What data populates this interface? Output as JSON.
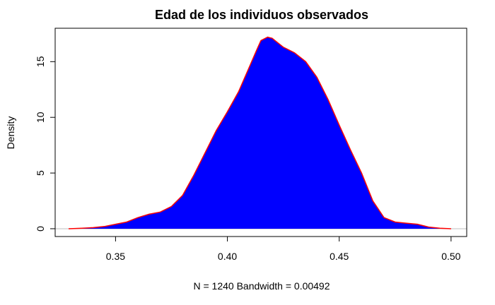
{
  "chart_data": {
    "type": "area",
    "title": "Edad de los individuos observados",
    "xlabel": "N = 1240   Bandwidth = 0.00492",
    "ylabel": "Density",
    "xlim": [
      0.323,
      0.507
    ],
    "ylim": [
      -0.7,
      18.0
    ],
    "x_ticks": [
      0.35,
      0.4,
      0.45,
      0.5
    ],
    "x_tick_labels": [
      "0.35",
      "0.40",
      "0.45",
      "0.50"
    ],
    "y_ticks": [
      0,
      5,
      10,
      15
    ],
    "y_tick_labels": [
      "0",
      "5",
      "10",
      "15"
    ],
    "fill_color": "#0000FF",
    "line_color": "#FF0000",
    "baseline_color": "#BEBEBE",
    "grid": false,
    "x": [
      0.329,
      0.335,
      0.34,
      0.345,
      0.35,
      0.355,
      0.36,
      0.365,
      0.37,
      0.375,
      0.38,
      0.385,
      0.39,
      0.395,
      0.4,
      0.405,
      0.41,
      0.413,
      0.415,
      0.418,
      0.42,
      0.425,
      0.43,
      0.435,
      0.44,
      0.445,
      0.45,
      0.455,
      0.46,
      0.465,
      0.47,
      0.475,
      0.48,
      0.485,
      0.49,
      0.495,
      0.5
    ],
    "y": [
      0.0,
      0.05,
      0.1,
      0.2,
      0.4,
      0.6,
      1.0,
      1.3,
      1.5,
      2.0,
      3.0,
      4.8,
      6.8,
      8.8,
      10.5,
      12.3,
      14.6,
      16.0,
      16.9,
      17.2,
      17.1,
      16.3,
      15.8,
      15.0,
      13.6,
      11.6,
      9.3,
      7.1,
      5.0,
      2.5,
      1.0,
      0.6,
      0.5,
      0.4,
      0.15,
      0.05,
      0.0
    ]
  }
}
